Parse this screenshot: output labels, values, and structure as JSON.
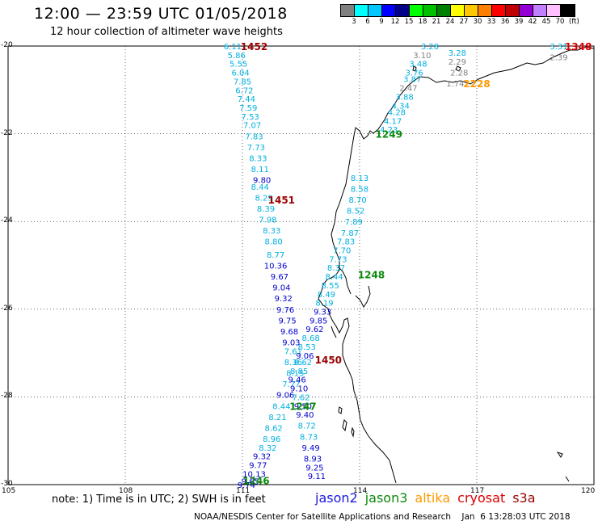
{
  "title": "12:00 — 23:59 UTC 01/05/2018",
  "subtitle": "12 hour collection of altimeter wave heights",
  "footer": "NOAA/NESDIS Center for Satellite Applications and Research    Jan  6 13:28:03 UTC 2018",
  "note": "note:  1) Time is in UTC;  2) SWH is in feet",
  "satellites": [
    {
      "name": "jason2",
      "color": "#1a1adc"
    },
    {
      "name": "jason3",
      "color": "#0a8a0a"
    },
    {
      "name": "altika",
      "color": "#ff9900"
    },
    {
      "name": "cryosat",
      "color": "#dd0000"
    },
    {
      "name": "s3a",
      "color": "#990000"
    }
  ],
  "legend": {
    "unit": "(ft)",
    "ticks": [
      "3",
      "6",
      "9",
      "12",
      "15",
      "18",
      "21",
      "24",
      "27",
      "30",
      "33",
      "36",
      "39",
      "42",
      "45",
      "70"
    ],
    "colors": [
      "#808080",
      "#00ffff",
      "#00c8ff",
      "#0000ff",
      "#00008b",
      "#00ff00",
      "#00c000",
      "#008000",
      "#ffff00",
      "#ffc800",
      "#ff8000",
      "#ff0000",
      "#c00000",
      "#9400d3",
      "#c080ff",
      "#ffc0ff",
      "#000000"
    ]
  },
  "axes": {
    "lat_labels": [
      "-20",
      "-22",
      "-24",
      "-26",
      "-28",
      "-30"
    ],
    "lon_labels": [
      "105",
      "108",
      "111",
      "114",
      "117",
      "120"
    ]
  },
  "pass_labels": [
    {
      "text": "1452",
      "lat": -20.0,
      "lon": 111.3,
      "color": "#990000"
    },
    {
      "text": "1348",
      "lat": -20.0,
      "lon": 119.6,
      "color": "#dd0000"
    },
    {
      "text": "2228",
      "lat": -20.85,
      "lon": 117.0,
      "color": "#ff9900"
    },
    {
      "text": "1249",
      "lat": -22.0,
      "lon": 114.75,
      "color": "#0a8a0a"
    },
    {
      "text": "1451",
      "lat": -23.5,
      "lon": 112.0,
      "color": "#990000"
    },
    {
      "text": "1248",
      "lat": -25.2,
      "lon": 114.3,
      "color": "#0a8a0a"
    },
    {
      "text": "1450",
      "lat": -27.15,
      "lon": 113.2,
      "color": "#990000"
    },
    {
      "text": "1247",
      "lat": -28.2,
      "lon": 112.55,
      "color": "#0a8a0a"
    },
    {
      "text": "1246",
      "lat": -29.9,
      "lon": 111.35,
      "color": "#0a8a0a"
    }
  ],
  "tracks": [
    {
      "name": "s3a pass 1452/1451/1450",
      "points": [
        {
          "v": "6.11",
          "lat": -20.0,
          "lon": 110.75,
          "c": "#00b0e0"
        },
        {
          "v": "5.86",
          "lat": -20.2,
          "lon": 110.85,
          "c": "#00b0e0"
        },
        {
          "v": "5.55",
          "lat": -20.4,
          "lon": 110.9,
          "c": "#00b0e0"
        },
        {
          "v": "6.04",
          "lat": -20.6,
          "lon": 110.95,
          "c": "#00b0e0"
        },
        {
          "v": "7.85",
          "lat": -20.8,
          "lon": 111.0,
          "c": "#00b0e0"
        },
        {
          "v": "6.72",
          "lat": -21.0,
          "lon": 111.05,
          "c": "#00b0e0"
        },
        {
          "v": "7.44",
          "lat": -21.2,
          "lon": 111.1,
          "c": "#00b0e0"
        },
        {
          "v": "7.59",
          "lat": -21.4,
          "lon": 111.15,
          "c": "#00b0e0"
        },
        {
          "v": "7.53",
          "lat": -21.6,
          "lon": 111.2,
          "c": "#00b0e0"
        },
        {
          "v": "7.07",
          "lat": -21.8,
          "lon": 111.25,
          "c": "#00b0e0"
        },
        {
          "v": "7.83",
          "lat": -22.05,
          "lon": 111.3,
          "c": "#00b0e0"
        },
        {
          "v": "7.73",
          "lat": -22.3,
          "lon": 111.35,
          "c": "#00b0e0"
        },
        {
          "v": "8.33",
          "lat": -22.55,
          "lon": 111.4,
          "c": "#00b0e0"
        },
        {
          "v": "8.11",
          "lat": -22.8,
          "lon": 111.45,
          "c": "#00b0e0"
        },
        {
          "v": "9.80",
          "lat": -23.05,
          "lon": 111.5,
          "c": "#0000cc"
        },
        {
          "v": "8.44",
          "lat": -23.2,
          "lon": 111.45,
          "c": "#00b0e0"
        },
        {
          "v": "8.29",
          "lat": -23.45,
          "lon": 111.55,
          "c": "#00b0e0"
        },
        {
          "v": "8.39",
          "lat": -23.7,
          "lon": 111.6,
          "c": "#00b0e0"
        },
        {
          "v": "7.98",
          "lat": -23.95,
          "lon": 111.65,
          "c": "#00b0e0"
        },
        {
          "v": "8.33",
          "lat": -24.2,
          "lon": 111.75,
          "c": "#00b0e0"
        },
        {
          "v": "8.80",
          "lat": -24.45,
          "lon": 111.8,
          "c": "#00b0e0"
        },
        {
          "v": "8.77",
          "lat": -24.75,
          "lon": 111.85,
          "c": "#00b0e0"
        },
        {
          "v": "10.36",
          "lat": -25.0,
          "lon": 111.85,
          "c": "#0000cc"
        },
        {
          "v": "9.67",
          "lat": -25.25,
          "lon": 111.95,
          "c": "#0000cc"
        },
        {
          "v": "9.04",
          "lat": -25.5,
          "lon": 112.0,
          "c": "#0000cc"
        },
        {
          "v": "9.32",
          "lat": -25.75,
          "lon": 112.05,
          "c": "#0000cc"
        },
        {
          "v": "9.76",
          "lat": -26.0,
          "lon": 112.1,
          "c": "#0000cc"
        },
        {
          "v": "9.75",
          "lat": -26.25,
          "lon": 112.15,
          "c": "#0000cc"
        },
        {
          "v": "9.68",
          "lat": -26.5,
          "lon": 112.2,
          "c": "#0000cc"
        },
        {
          "v": "9.03",
          "lat": -26.75,
          "lon": 112.25,
          "c": "#0000cc"
        },
        {
          "v": "7.61",
          "lat": -26.95,
          "lon": 112.3,
          "c": "#00b0e0"
        },
        {
          "v": "8.36",
          "lat": -27.2,
          "lon": 112.3,
          "c": "#00b0e0"
        },
        {
          "v": "8.15",
          "lat": -27.45,
          "lon": 112.35,
          "c": "#00b0e0"
        },
        {
          "v": "7.77",
          "lat": -27.7,
          "lon": 112.25,
          "c": "#00b0e0"
        },
        {
          "v": "9.06",
          "lat": -27.95,
          "lon": 112.1,
          "c": "#0000cc"
        },
        {
          "v": "8.44",
          "lat": -28.2,
          "lon": 112.0,
          "c": "#00b0e0"
        },
        {
          "v": "8.21",
          "lat": -28.45,
          "lon": 111.9,
          "c": "#00b0e0"
        },
        {
          "v": "8.62",
          "lat": -28.7,
          "lon": 111.8,
          "c": "#00b0e0"
        },
        {
          "v": "8.96",
          "lat": -28.95,
          "lon": 111.75,
          "c": "#00b0e0"
        },
        {
          "v": "8.32",
          "lat": -29.15,
          "lon": 111.65,
          "c": "#00b0e0"
        },
        {
          "v": "9.32",
          "lat": -29.35,
          "lon": 111.5,
          "c": "#0000cc"
        },
        {
          "v": "9.77",
          "lat": -29.55,
          "lon": 111.4,
          "c": "#0000cc"
        },
        {
          "v": "10.13",
          "lat": -29.75,
          "lon": 111.3,
          "c": "#0000cc"
        },
        {
          "v": "9.65",
          "lat": -29.92,
          "lon": 111.2,
          "c": "#0000cc"
        },
        {
          "v": "9.74",
          "lat": -30.0,
          "lon": 111.1,
          "c": "#0000cc"
        }
      ]
    },
    {
      "name": "jason3 pass 1249/1248/1247",
      "points": [
        {
          "v": "8.13",
          "lat": -23.0,
          "lon": 114.0,
          "c": "#00b0e0"
        },
        {
          "v": "8.58",
          "lat": -23.25,
          "lon": 114.0,
          "c": "#00b0e0"
        },
        {
          "v": "8.70",
          "lat": -23.5,
          "lon": 113.95,
          "c": "#00b0e0"
        },
        {
          "v": "8.52",
          "lat": -23.75,
          "lon": 113.9,
          "c": "#00b0e0"
        },
        {
          "v": "7.89",
          "lat": -24.0,
          "lon": 113.85,
          "c": "#00b0e0"
        },
        {
          "v": "7.87",
          "lat": -24.25,
          "lon": 113.75,
          "c": "#00b0e0"
        },
        {
          "v": "7.83",
          "lat": -24.45,
          "lon": 113.65,
          "c": "#00b0e0"
        },
        {
          "v": "7.70",
          "lat": -24.65,
          "lon": 113.55,
          "c": "#00b0e0"
        },
        {
          "v": "7.73",
          "lat": -24.85,
          "lon": 113.45,
          "c": "#00b0e0"
        },
        {
          "v": "8.37",
          "lat": -25.05,
          "lon": 113.4,
          "c": "#00b0e0"
        },
        {
          "v": "8.44",
          "lat": -25.25,
          "lon": 113.35,
          "c": "#00b0e0"
        },
        {
          "v": "8.55",
          "lat": -25.45,
          "lon": 113.25,
          "c": "#00b0e0"
        },
        {
          "v": "8.49",
          "lat": -25.65,
          "lon": 113.15,
          "c": "#00b0e0"
        },
        {
          "v": "8.19",
          "lat": -25.85,
          "lon": 113.1,
          "c": "#00b0e0"
        },
        {
          "v": "9.33",
          "lat": -26.05,
          "lon": 113.05,
          "c": "#0000cc"
        },
        {
          "v": "9.85",
          "lat": -26.25,
          "lon": 112.95,
          "c": "#0000cc"
        },
        {
          "v": "9.62",
          "lat": -26.45,
          "lon": 112.85,
          "c": "#0000cc"
        },
        {
          "v": "8.68",
          "lat": -26.65,
          "lon": 112.75,
          "c": "#00b0e0"
        },
        {
          "v": "8.53",
          "lat": -26.85,
          "lon": 112.65,
          "c": "#00b0e0"
        },
        {
          "v": "9.06",
          "lat": -27.05,
          "lon": 112.6,
          "c": "#0000cc"
        },
        {
          "v": "8.62",
          "lat": -27.2,
          "lon": 112.55,
          "c": "#00b0e0"
        },
        {
          "v": "8.85",
          "lat": -27.4,
          "lon": 112.45,
          "c": "#00b0e0"
        },
        {
          "v": "9.46",
          "lat": -27.6,
          "lon": 112.4,
          "c": "#0000cc"
        },
        {
          "v": "9.10",
          "lat": -27.8,
          "lon": 112.45,
          "c": "#0000cc"
        },
        {
          "v": "7.62",
          "lat": -28.0,
          "lon": 112.5,
          "c": "#00b0e0"
        },
        {
          "v": "9.50",
          "lat": -28.2,
          "lon": 112.55,
          "c": "#0000cc"
        },
        {
          "v": "9.40",
          "lat": -28.4,
          "lon": 112.6,
          "c": "#0000cc"
        },
        {
          "v": "8.72",
          "lat": -28.65,
          "lon": 112.65,
          "c": "#00b0e0"
        },
        {
          "v": "8.73",
          "lat": -28.9,
          "lon": 112.7,
          "c": "#00b0e0"
        },
        {
          "v": "9.49",
          "lat": -29.15,
          "lon": 112.75,
          "c": "#0000cc"
        },
        {
          "v": "8.93",
          "lat": -29.4,
          "lon": 112.8,
          "c": "#0000cc"
        },
        {
          "v": "9.25",
          "lat": -29.6,
          "lon": 112.85,
          "c": "#0000cc"
        },
        {
          "v": "9.11",
          "lat": -29.8,
          "lon": 112.9,
          "c": "#0000cc"
        }
      ]
    },
    {
      "name": "jason3 pass 1249 north",
      "points": [
        {
          "v": "3.28",
          "lat": -20.0,
          "lon": 115.8,
          "c": "#00b0e0"
        },
        {
          "v": "3.10",
          "lat": -20.2,
          "lon": 115.6,
          "c": "#808080"
        },
        {
          "v": "3.48",
          "lat": -20.4,
          "lon": 115.5,
          "c": "#00b0e0"
        },
        {
          "v": "3.76",
          "lat": -20.6,
          "lon": 115.4,
          "c": "#00b0e0"
        },
        {
          "v": "3.87",
          "lat": -20.75,
          "lon": 115.35,
          "c": "#00b0e0"
        },
        {
          "v": "2.47",
          "lat": -20.95,
          "lon": 115.25,
          "c": "#808080"
        },
        {
          "v": "3.88",
          "lat": -21.15,
          "lon": 115.15,
          "c": "#00b0e0"
        },
        {
          "v": "4.34",
          "lat": -21.35,
          "lon": 115.05,
          "c": "#00b0e0"
        },
        {
          "v": "4.28",
          "lat": -21.5,
          "lon": 114.95,
          "c": "#00b0e0"
        },
        {
          "v": "4.17",
          "lat": -21.7,
          "lon": 114.85,
          "c": "#00b0e0"
        },
        {
          "v": "4.23",
          "lat": -21.9,
          "lon": 114.75,
          "c": "#00b0e0"
        }
      ]
    },
    {
      "name": "altika pass 2228",
      "points": [
        {
          "v": "3.28",
          "lat": -20.15,
          "lon": 116.5,
          "c": "#00b0e0"
        },
        {
          "v": "2.29",
          "lat": -20.35,
          "lon": 116.5,
          "c": "#808080"
        },
        {
          "v": "2.28",
          "lat": -20.6,
          "lon": 116.55,
          "c": "#808080"
        },
        {
          "v": "1.74",
          "lat": -20.85,
          "lon": 116.45,
          "c": "#808080"
        }
      ]
    },
    {
      "name": "cryosat pass 1348",
      "points": [
        {
          "v": "3.31",
          "lat": -20.0,
          "lon": 119.1,
          "c": "#00b0e0"
        },
        {
          "v": "2.39",
          "lat": -20.25,
          "lon": 119.1,
          "c": "#808080"
        }
      ]
    }
  ]
}
